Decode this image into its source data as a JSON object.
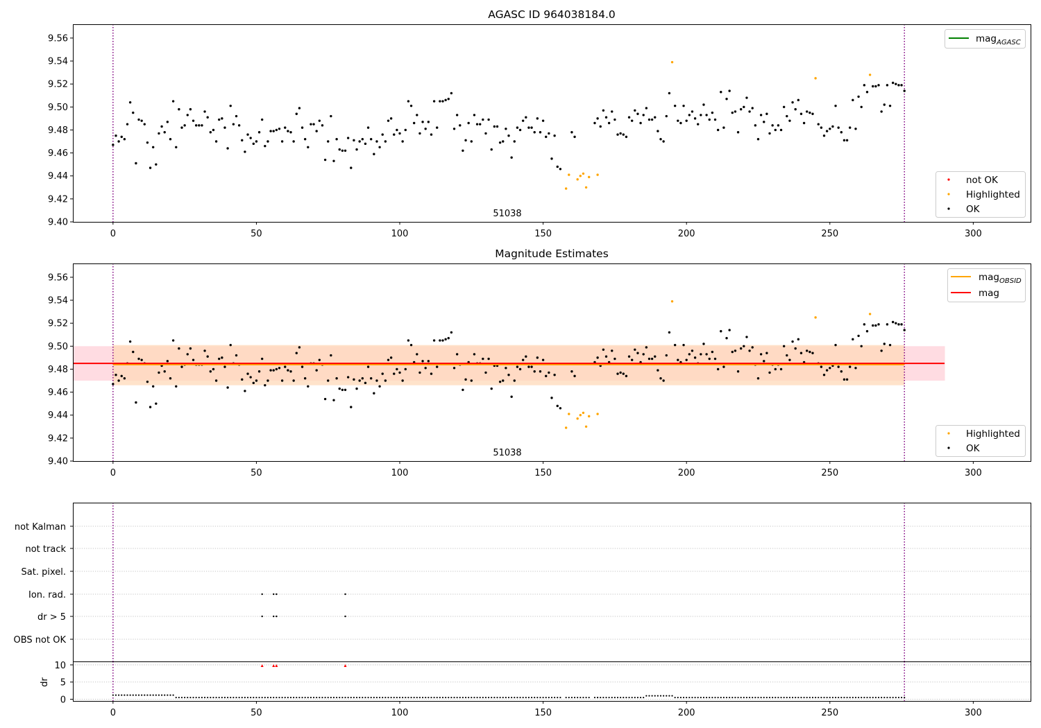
{
  "colors": {
    "ok": "#000000",
    "highlighted": "#ffa500",
    "not_ok": "#ff0000",
    "agasc_line": "#008000",
    "obsid_line": "#ffa500",
    "mag_line": "#ff0000",
    "obs_boundary": "#800080",
    "band_red": "#ffc0cb",
    "band_orange": "#ffdab9"
  },
  "chart_data": [
    {
      "type": "scatter",
      "title": "AGASC ID 964038184.0",
      "xlim": [
        -14,
        320
      ],
      "ylim": [
        9.4,
        9.572
      ],
      "xticks": [
        0,
        50,
        100,
        150,
        200,
        250,
        300
      ],
      "yticks": [
        "9.40",
        "9.42",
        "9.44",
        "9.46",
        "9.48",
        "9.50",
        "9.52",
        "9.54",
        "9.56"
      ],
      "obs_boundaries": [
        0,
        276
      ],
      "obsid_label": "51038",
      "legend_upper": [
        "mag_{AGASC}"
      ],
      "legend_lower": [
        "not OK",
        "Highlighted",
        "OK"
      ],
      "series": [
        {
          "name": "OK",
          "x": [
            0,
            1,
            2,
            3,
            4,
            5,
            6,
            7,
            8,
            9,
            10,
            11,
            12,
            13,
            14,
            15,
            16,
            17,
            18,
            19,
            20,
            21,
            22,
            23,
            24,
            25,
            26,
            27,
            28,
            29,
            30,
            31,
            32,
            33,
            34,
            35,
            36,
            37,
            38,
            39,
            40,
            41,
            42,
            43,
            44,
            45,
            46,
            47,
            48,
            49,
            50,
            51,
            52,
            53,
            54,
            55,
            56,
            57,
            58,
            59,
            60,
            61,
            62,
            63,
            64,
            65,
            66,
            67,
            68,
            69,
            70,
            71,
            72,
            73,
            74,
            75,
            76,
            77,
            78,
            79,
            80,
            81,
            82,
            83,
            84,
            85,
            86,
            87,
            88,
            89,
            90,
            91,
            92,
            93,
            94,
            95,
            96,
            97,
            98,
            99,
            100,
            101,
            102,
            103,
            104,
            105,
            106,
            107,
            108,
            109,
            110,
            111,
            112,
            113,
            114,
            115,
            116,
            117,
            118,
            119,
            120,
            121,
            122,
            123,
            124,
            125,
            126,
            127,
            128,
            129,
            130,
            131,
            132,
            133,
            134,
            135,
            136,
            137,
            138,
            139,
            140,
            141,
            142,
            143,
            144,
            145,
            146,
            147,
            148,
            149,
            150,
            151,
            152,
            153,
            154,
            155,
            156,
            160,
            161,
            168,
            169,
            170,
            171,
            172,
            173,
            174,
            175,
            176,
            177,
            178,
            179,
            180,
            181,
            182,
            183,
            184,
            185,
            186,
            187,
            188,
            189,
            190,
            191,
            192,
            193,
            194,
            196,
            197,
            198,
            199,
            200,
            201,
            202,
            203,
            204,
            205,
            206,
            207,
            208,
            209,
            210,
            211,
            212,
            213,
            214,
            215,
            216,
            217,
            218,
            219,
            220,
            221,
            222,
            223,
            224,
            225,
            226,
            227,
            228,
            229,
            230,
            231,
            232,
            233,
            234,
            235,
            236,
            237,
            238,
            239,
            240,
            241,
            242,
            243,
            244,
            246,
            247,
            248,
            249,
            250,
            251,
            252,
            253,
            254,
            255,
            256,
            257,
            258,
            259,
            260,
            261,
            262,
            263,
            265,
            266,
            267,
            268,
            269,
            270,
            271,
            272,
            273,
            274,
            275,
            276
          ],
          "y": [
            9.467,
            9.475,
            9.47,
            9.474,
            9.472,
            9.485,
            9.504,
            9.495,
            9.451,
            9.489,
            9.488,
            9.485,
            9.469,
            9.447,
            9.465,
            9.45,
            9.477,
            9.483,
            9.478,
            9.487,
            9.472,
            9.505,
            9.465,
            9.498,
            9.482,
            9.484,
            9.493,
            9.498,
            9.488,
            9.484,
            9.484,
            9.484,
            9.496,
            9.491,
            9.478,
            9.48,
            9.47,
            9.489,
            9.49,
            9.482,
            9.464,
            9.501,
            9.485,
            9.492,
            9.484,
            9.471,
            9.461,
            9.476,
            9.473,
            9.468,
            9.47,
            9.478,
            9.489,
            9.466,
            9.47,
            9.479,
            9.479,
            9.48,
            9.481,
            9.47,
            9.482,
            9.479,
            9.478,
            9.47,
            9.494,
            9.499,
            9.482,
            9.472,
            9.465,
            9.485,
            9.485,
            9.479,
            9.488,
            9.484,
            9.454,
            9.47,
            9.492,
            9.453,
            9.472,
            9.463,
            9.462,
            9.462,
            9.473,
            9.447,
            9.471,
            9.463,
            9.47,
            9.472,
            9.468,
            9.482,
            9.472,
            9.459,
            9.47,
            9.465,
            9.476,
            9.47,
            9.488,
            9.49,
            9.476,
            9.48,
            9.477,
            9.47,
            9.48,
            9.505,
            9.501,
            9.486,
            9.493,
            9.477,
            9.487,
            9.481,
            9.487,
            9.476,
            9.505,
            9.482,
            9.505,
            9.505,
            9.506,
            9.507,
            9.512,
            9.481,
            9.493,
            9.484,
            9.462,
            9.471,
            9.486,
            9.47,
            9.493,
            9.485,
            9.485,
            9.489,
            9.477,
            9.489,
            9.463,
            9.483,
            9.483,
            9.469,
            9.47,
            9.481,
            9.475,
            9.456,
            9.47,
            9.482,
            9.48,
            9.488,
            9.491,
            9.482,
            9.482,
            9.478,
            9.49,
            9.478,
            9.488,
            9.474,
            9.477,
            9.455,
            9.475,
            9.448,
            9.446,
            9.478,
            9.474,
            9.486,
            9.49,
            9.483,
            9.497,
            9.491,
            9.486,
            9.496,
            9.489,
            9.476,
            9.477,
            9.476,
            9.474,
            9.491,
            9.488,
            9.497,
            9.494,
            9.486,
            9.493,
            9.499,
            9.489,
            9.489,
            9.491,
            9.479,
            9.472,
            9.47,
            9.492,
            9.512,
            9.501,
            9.488,
            9.486,
            9.501,
            9.488,
            9.493,
            9.496,
            9.49,
            9.485,
            9.493,
            9.502,
            9.493,
            9.489,
            9.495,
            9.489,
            9.48,
            9.513,
            9.482,
            9.507,
            9.514,
            9.495,
            9.496,
            9.478,
            9.498,
            9.5,
            9.508,
            9.496,
            9.499,
            9.484,
            9.472,
            9.493,
            9.487,
            9.494,
            9.477,
            9.484,
            9.48,
            9.484,
            9.48,
            9.5,
            9.492,
            9.488,
            9.504,
            9.498,
            9.506,
            9.494,
            9.486,
            9.496,
            9.495,
            9.494,
            9.485,
            9.482,
            9.475,
            9.479,
            9.481,
            9.483,
            9.501,
            9.482,
            9.478,
            9.471,
            9.471,
            9.482,
            9.506,
            9.481,
            9.509,
            9.5,
            9.519,
            9.513,
            9.518,
            9.518,
            9.519,
            9.496,
            9.502,
            9.519,
            9.501,
            9.521,
            9.52,
            9.519,
            9.519,
            9.514
          ]
        },
        {
          "name": "Highlighted",
          "x": [
            158,
            159,
            162,
            163,
            164,
            165,
            166,
            169,
            195,
            245,
            264
          ],
          "y": [
            9.429,
            9.441,
            9.437,
            9.44,
            9.442,
            9.43,
            9.439,
            9.441,
            9.539,
            9.525,
            9.528
          ]
        }
      ]
    },
    {
      "type": "scatter",
      "title": "Magnitude Estimates",
      "xlim": [
        -14,
        320
      ],
      "ylim": [
        9.4,
        9.572
      ],
      "xticks": [
        0,
        50,
        100,
        150,
        200,
        250,
        300
      ],
      "yticks": [
        "9.40",
        "9.42",
        "9.44",
        "9.46",
        "9.48",
        "9.50",
        "9.52",
        "9.54",
        "9.56"
      ],
      "obs_boundaries": [
        0,
        276
      ],
      "obsid_label": "51038",
      "mag": 9.485,
      "mag_band": [
        9.47,
        9.5
      ],
      "mag_xrange": [
        -14,
        290
      ],
      "mag_obsid": 9.484,
      "mag_obsid_band": [
        9.466,
        9.501
      ],
      "mag_obsid_xrange": [
        0,
        276
      ],
      "legend_upper": [
        "mag_{OBSID}",
        "mag"
      ],
      "legend_lower": [
        "Highlighted",
        "OK"
      ],
      "series_ref": "same points as first panel"
    },
    {
      "type": "scatter",
      "title": "",
      "xlim": [
        -14,
        320
      ],
      "xticks": [
        0,
        50,
        100,
        150,
        200,
        250,
        300
      ],
      "obs_boundaries": [
        0,
        276
      ],
      "flag_rows": [
        "not Kalman",
        "not track",
        "Sat. pixel.",
        "Ion. rad.",
        "dr > 5",
        "OBS not OK"
      ],
      "flags": {
        "Ion. rad.": [
          52,
          56,
          57,
          81
        ],
        "dr > 5": [
          52,
          56,
          57,
          81
        ]
      },
      "dr_ylabel": "dr",
      "dr_yticks": [
        "0",
        "5",
        "10"
      ],
      "dr_ylim": [
        -0.5,
        11
      ],
      "dr_clipped_x": [
        52,
        56,
        57,
        81
      ]
    }
  ],
  "text": {
    "title1": "AGASC ID 964038184.0",
    "title2": "Magnitude Estimates",
    "obsid1": "51038",
    "obsid2": "51038",
    "legend1_mag_base": "mag",
    "legend1_mag_sub": "AGASC",
    "legend2_obsid_base": "mag",
    "legend2_obsid_sub": "OBSID",
    "legend2_mag": "mag",
    "legend_notok": "not OK",
    "legend_highlighted": "Highlighted",
    "legend_ok": "OK",
    "dr_ylabel": "dr"
  }
}
